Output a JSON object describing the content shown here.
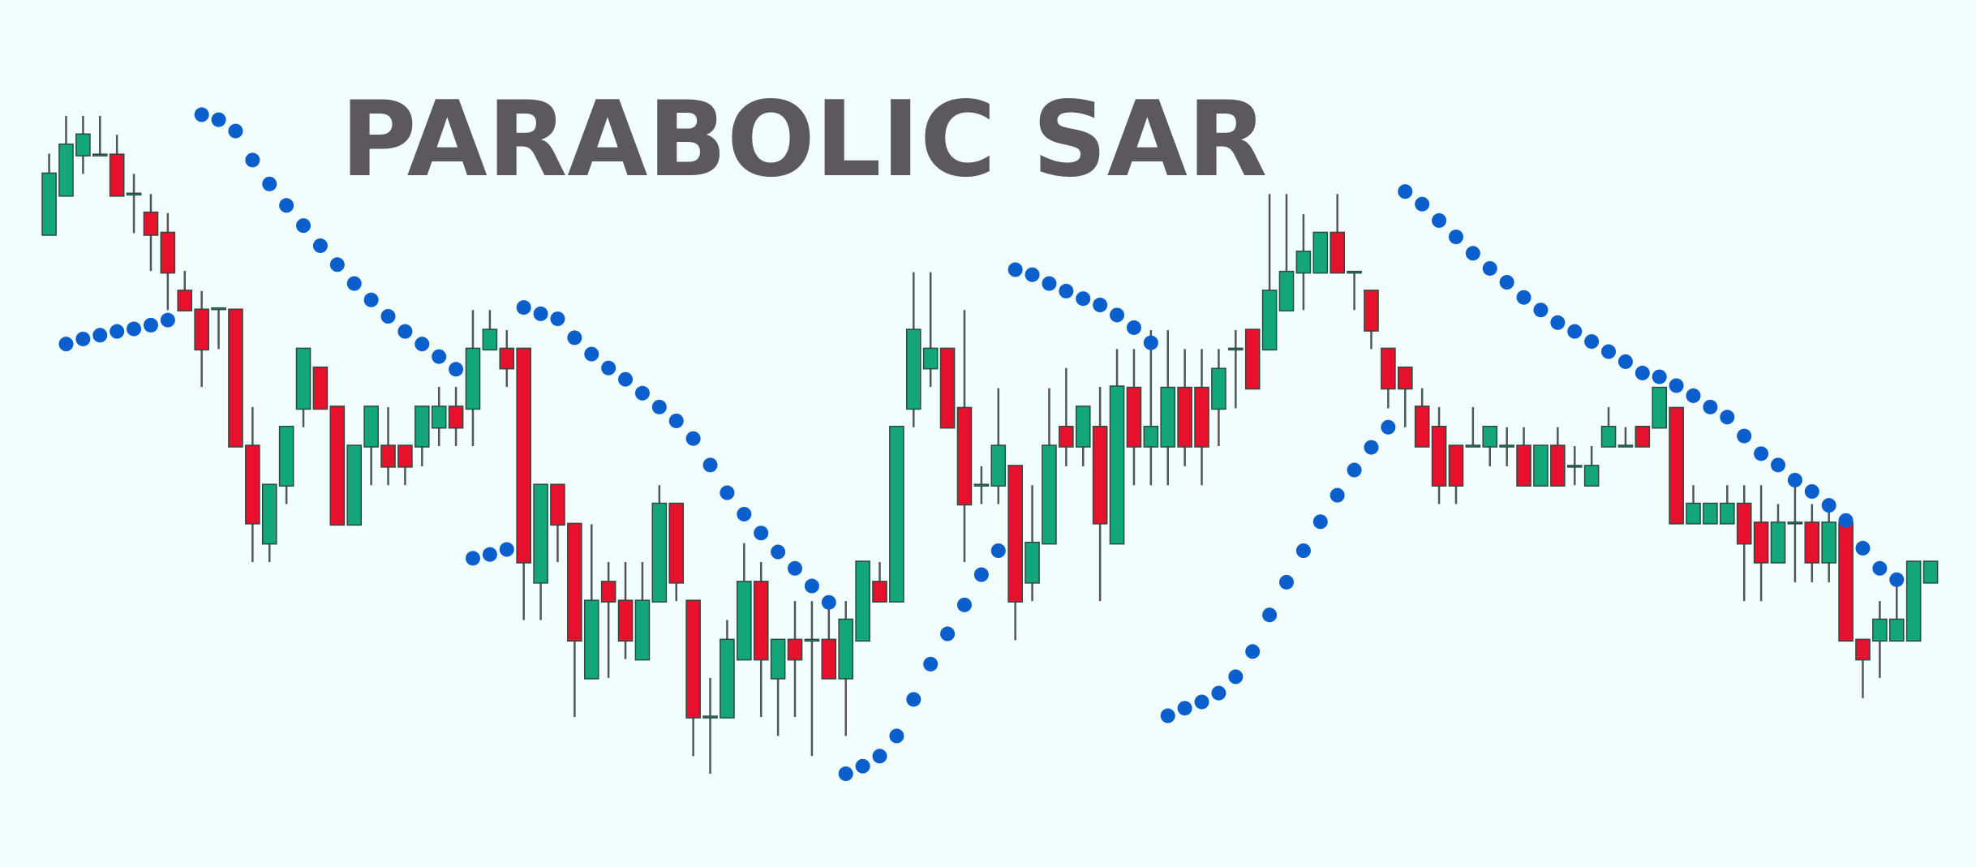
{
  "chart_data": {
    "type": "candlestick",
    "title": "PARABOLIC SAR",
    "ylim": [
      0,
      688
    ],
    "up_color": "#12a67a",
    "down_color": "#e8112d",
    "wick_color": "#555555",
    "open": [
      502,
      533,
      565,
      565,
      565,
      534,
      519,
      503,
      457,
      442,
      443,
      442,
      334,
      257,
      303,
      364,
      396,
      365,
      272,
      334,
      334,
      334,
      334,
      349,
      365,
      364,
      411,
      411,
      411,
      226,
      303,
      272,
      150,
      226,
      211,
      165,
      211,
      288,
      211,
      119,
      119,
      165,
      226,
      150,
      180,
      180,
      180,
      150,
      180,
      226,
      211,
      364,
      396,
      411,
      364,
      303,
      303,
      318,
      226,
      257,
      349,
      334,
      349,
      257,
      380,
      334,
      334,
      380,
      380,
      364,
      411,
      426,
      411,
      442,
      472,
      472,
      503,
      472,
      457,
      411,
      396,
      365,
      349,
      334,
      334,
      334,
      334,
      334,
      303,
      334,
      318,
      303,
      334,
      334,
      349,
      349,
      364,
      273,
      273,
      273,
      288,
      273,
      242,
      273,
      273,
      242,
      273,
      180,
      180,
      180,
      180,
      226
    ],
    "high": [
      566,
      596,
      596,
      596,
      581,
      550,
      534,
      519,
      473,
      457,
      443,
      442,
      365,
      303,
      349,
      411,
      396,
      365,
      334,
      365,
      365,
      334,
      365,
      381,
      381,
      442,
      442,
      426,
      411,
      303,
      303,
      272,
      272,
      242,
      242,
      242,
      303,
      288,
      211,
      150,
      196,
      257,
      242,
      180,
      211,
      211,
      211,
      211,
      242,
      242,
      349,
      472,
      472,
      411,
      442,
      318,
      380,
      318,
      303,
      380,
      396,
      365,
      381,
      411,
      411,
      426,
      426,
      411,
      411,
      411,
      426,
      426,
      534,
      534,
      518,
      503,
      534,
      472,
      457,
      411,
      396,
      380,
      365,
      334,
      365,
      349,
      349,
      349,
      334,
      349,
      334,
      334,
      365,
      349,
      349,
      380,
      364,
      303,
      288,
      303,
      303,
      303,
      288,
      303,
      288,
      288,
      273,
      180,
      211,
      226,
      242,
      242
    ],
    "low": [
      502,
      533,
      550,
      565,
      533,
      503,
      473,
      442,
      442,
      381,
      411,
      334,
      242,
      242,
      288,
      349,
      364,
      272,
      272,
      303,
      303,
      303,
      318,
      334,
      334,
      334,
      411,
      381,
      196,
      196,
      242,
      119,
      150,
      150,
      165,
      165,
      211,
      211,
      88,
      74,
      119,
      165,
      119,
      104,
      119,
      88,
      150,
      104,
      180,
      211,
      211,
      349,
      381,
      349,
      242,
      288,
      288,
      180,
      211,
      257,
      318,
      318,
      211,
      257,
      303,
      303,
      303,
      318,
      303,
      334,
      364,
      380,
      411,
      442,
      442,
      472,
      472,
      442,
      411,
      364,
      349,
      334,
      288,
      288,
      334,
      318,
      318,
      303,
      303,
      303,
      303,
      303,
      334,
      334,
      334,
      349,
      273,
      273,
      273,
      273,
      211,
      211,
      242,
      226,
      226,
      226,
      180,
      134,
      150,
      180,
      180,
      226
    ],
    "close": [
      550,
      573,
      581,
      565,
      533,
      534,
      502,
      472,
      442,
      411,
      443,
      334,
      273,
      303,
      349,
      411,
      364,
      272,
      334,
      365,
      318,
      318,
      365,
      365,
      349,
      411,
      426,
      396,
      242,
      303,
      272,
      180,
      211,
      211,
      180,
      211,
      288,
      226,
      119,
      119,
      180,
      226,
      165,
      180,
      165,
      180,
      150,
      196,
      242,
      211,
      349,
      426,
      411,
      349,
      288,
      303,
      334,
      211,
      257,
      334,
      334,
      365,
      273,
      381,
      334,
      349,
      380,
      334,
      334,
      395,
      411,
      380,
      457,
      472,
      488,
      503,
      472,
      472,
      426,
      380,
      380,
      334,
      303,
      303,
      334,
      349,
      334,
      303,
      334,
      303,
      318,
      318,
      349,
      334,
      334,
      380,
      273,
      288,
      288,
      288,
      257,
      242,
      273,
      273,
      242,
      273,
      180,
      165,
      196,
      196,
      242,
      242
    ],
    "sar": {
      "color": "#0a5fcc",
      "values": [
        null,
        415,
        419,
        422,
        425,
        427,
        430,
        434,
        null,
        597,
        593,
        584,
        561,
        542,
        525,
        509,
        493,
        478,
        463,
        450,
        437,
        425,
        415,
        405,
        395,
        245,
        248,
        252,
        444,
        439,
        435,
        420,
        407,
        396,
        387,
        376,
        365,
        354,
        340,
        319,
        297,
        280,
        265,
        250,
        237,
        223,
        210,
        74,
        80,
        88,
        104,
        133,
        161,
        185,
        208,
        232,
        251,
        474,
        470,
        463,
        457,
        451,
        446,
        438,
        428,
        416,
        120,
        126,
        131,
        138,
        151,
        171,
        200,
        226,
        251,
        274,
        295,
        315,
        333,
        349,
        536,
        526,
        513,
        500,
        487,
        475,
        464,
        452,
        442,
        432,
        425,
        417,
        409,
        401,
        392,
        389,
        382,
        374,
        365,
        357,
        342,
        328,
        319,
        307,
        298,
        287,
        275,
        253,
        237,
        228,
        null,
        null
      ]
    }
  }
}
